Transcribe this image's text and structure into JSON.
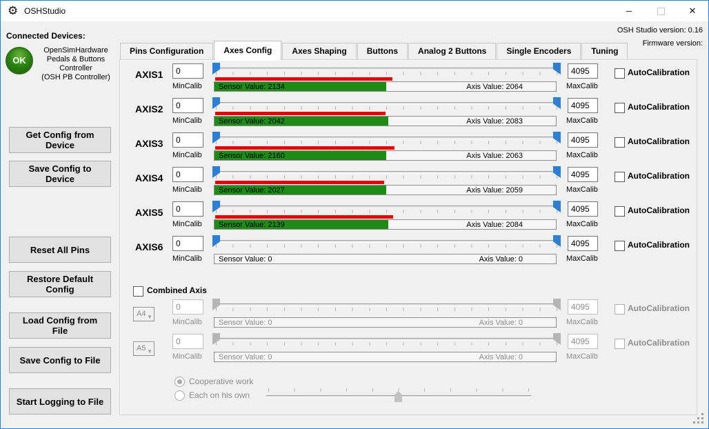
{
  "titlebar": {
    "title": "OSHStudio",
    "minimize_glyph": "─",
    "close_glyph": "✕"
  },
  "header": {
    "studio_version": "OSH Studio version: 0.16",
    "firmware_version": "Firmware version:"
  },
  "sidebar": {
    "connected_heading": "Connected Devices:",
    "device_status": "OK",
    "device_name_lines": [
      "OpenSimHardware",
      "Pedals & Buttons",
      "Controller",
      "(OSH PB Controller)"
    ],
    "buttons": [
      {
        "label": "Get Config from Device"
      },
      {
        "label": "Save Config to Device"
      },
      {
        "label": "Reset All Pins"
      },
      {
        "label": "Restore Default Config"
      },
      {
        "label": "Load Config from File"
      },
      {
        "label": "Save Config to File"
      },
      {
        "label": "Start Logging to File"
      }
    ]
  },
  "tabs": {
    "items": [
      {
        "label": "Pins Configuration"
      },
      {
        "label": "Axes Config"
      },
      {
        "label": "Axes Shaping"
      },
      {
        "label": "Buttons"
      },
      {
        "label": "Analog 2 Buttons"
      },
      {
        "label": "Single Encoders"
      },
      {
        "label": "Tuning"
      }
    ],
    "active": "Axes Config"
  },
  "axes": {
    "min_label": "MinCalib",
    "max_label": "MaxCalib",
    "autocal_label": "AutoCalibration",
    "rows": [
      {
        "name": "AXIS1",
        "min": "0",
        "max": "4095",
        "sensor_value": 2134,
        "axis_value": 2064,
        "sensor_text": "Sensor Value: 2134",
        "axis_text": "Axis Value: 2064",
        "sensor_pct": 52.1,
        "axis_pct": 50.4,
        "autocalibration_checked": false
      },
      {
        "name": "AXIS2",
        "min": "0",
        "max": "4095",
        "sensor_value": 2042,
        "axis_value": 2083,
        "sensor_text": "Sensor Value: 2042",
        "axis_text": "Axis Value: 2083",
        "sensor_pct": 49.9,
        "axis_pct": 50.9,
        "autocalibration_checked": false
      },
      {
        "name": "AXIS3",
        "min": "0",
        "max": "4095",
        "sensor_value": 2160,
        "axis_value": 2063,
        "sensor_text": "Sensor Value: 2160",
        "axis_text": "Axis Value: 2063",
        "sensor_pct": 52.7,
        "axis_pct": 50.4,
        "autocalibration_checked": false
      },
      {
        "name": "AXIS4",
        "min": "0",
        "max": "4095",
        "sensor_value": 2027,
        "axis_value": 2059,
        "sensor_text": "Sensor Value: 2027",
        "axis_text": "Axis Value: 2059",
        "sensor_pct": 49.5,
        "axis_pct": 50.3,
        "autocalibration_checked": false
      },
      {
        "name": "AXIS5",
        "min": "0",
        "max": "4095",
        "sensor_value": 2139,
        "axis_value": 2084,
        "sensor_text": "Sensor Value: 2139",
        "axis_text": "Axis Value: 2084",
        "sensor_pct": 52.2,
        "axis_pct": 50.9,
        "autocalibration_checked": false
      },
      {
        "name": "AXIS6",
        "min": "0",
        "max": "4095",
        "sensor_value": 0,
        "axis_value": 0,
        "sensor_text": "Sensor Value: 0",
        "axis_text": "Axis Value: 0",
        "sensor_pct": 0,
        "axis_pct": 0,
        "autocalibration_checked": false
      }
    ]
  },
  "combined": {
    "label": "Combined Axis",
    "checked": false,
    "rows": [
      {
        "pin": "A4",
        "min": "0",
        "max": "4095",
        "sensor_text": "Sensor Value: 0",
        "axis_text": "Axis Value: 0",
        "sensor_pct": 0,
        "axis_pct": 0
      },
      {
        "pin": "A5",
        "min": "0",
        "max": "4095",
        "sensor_text": "Sensor Value: 0",
        "axis_text": "Axis Value: 0",
        "sensor_pct": 0,
        "axis_pct": 0
      }
    ],
    "radios": [
      {
        "label": "Cooperative work",
        "selected": true
      },
      {
        "label": "Each on his own",
        "selected": false
      }
    ],
    "mix_slider_pct": 50
  },
  "colors": {
    "window_border_blue": "#1883d7",
    "slider_thumb_blue": "#2e7fd4",
    "sensor_bar_red": "#e60000",
    "axis_bar_green": "#1f8a15",
    "status_ok_green": "#2e8613",
    "background": "#f0f0f0"
  }
}
